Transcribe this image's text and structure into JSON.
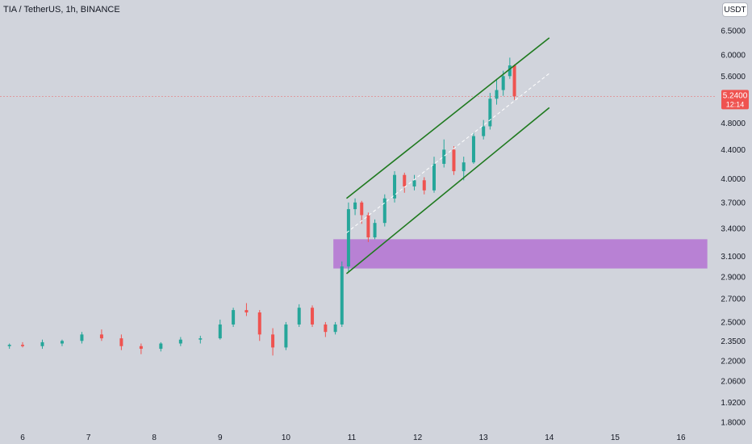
{
  "header": {
    "title": "TIA / TetherUS, 1h, BINANCE",
    "currency": "USDT"
  },
  "colors": {
    "background": "#d1d4dc",
    "up": "#26a69a",
    "down": "#ef5350",
    "channel": "#1f7a1f",
    "zone": "#b579d2",
    "midline": "#ffffff",
    "price_line": "#ef5350"
  },
  "chart_data": {
    "type": "candlestick",
    "title": "TIA / TetherUS, 1h, BINANCE",
    "x_ticks": [
      "6",
      "7",
      "8",
      "9",
      "10",
      "11",
      "12",
      "13",
      "14",
      "15",
      "16"
    ],
    "y_ticks": [
      "6.5000",
      "6.0000",
      "5.6000",
      "4.8000",
      "4.4000",
      "4.0000",
      "3.7000",
      "3.4000",
      "3.1000",
      "2.9000",
      "2.7000",
      "2.5000",
      "2.3500",
      "2.2000",
      "2.0600",
      "1.9200",
      "1.8000"
    ],
    "y_scale": "log",
    "y_range": [
      1.75,
      7.2
    ],
    "last_price": {
      "value": "5.2400",
      "countdown": "12:14"
    },
    "candles_approx": [
      [
        5.8,
        2.31,
        2.33,
        2.29,
        2.32
      ],
      [
        6.0,
        2.32,
        2.34,
        2.3,
        2.31
      ],
      [
        6.3,
        2.31,
        2.36,
        2.29,
        2.34
      ],
      [
        6.6,
        2.33,
        2.36,
        2.31,
        2.35
      ],
      [
        6.9,
        2.35,
        2.42,
        2.33,
        2.4
      ],
      [
        7.2,
        2.4,
        2.44,
        2.35,
        2.37
      ],
      [
        7.5,
        2.37,
        2.4,
        2.28,
        2.31
      ],
      [
        7.8,
        2.31,
        2.33,
        2.25,
        2.29
      ],
      [
        8.1,
        2.29,
        2.34,
        2.27,
        2.33
      ],
      [
        8.4,
        2.33,
        2.38,
        2.31,
        2.36
      ],
      [
        8.7,
        2.36,
        2.39,
        2.33,
        2.37
      ],
      [
        9.0,
        2.37,
        2.52,
        2.36,
        2.48
      ],
      [
        9.2,
        2.48,
        2.62,
        2.46,
        2.6
      ],
      [
        9.4,
        2.6,
        2.66,
        2.55,
        2.58
      ],
      [
        9.6,
        2.58,
        2.6,
        2.35,
        2.4
      ],
      [
        9.8,
        2.4,
        2.45,
        2.24,
        2.3
      ],
      [
        10.0,
        2.3,
        2.5,
        2.28,
        2.48
      ],
      [
        10.2,
        2.48,
        2.65,
        2.46,
        2.62
      ],
      [
        10.4,
        2.62,
        2.64,
        2.46,
        2.48
      ],
      [
        10.6,
        2.48,
        2.5,
        2.38,
        2.42
      ],
      [
        10.75,
        2.42,
        2.5,
        2.4,
        2.48
      ],
      [
        10.85,
        2.48,
        3.05,
        2.46,
        3.0
      ],
      [
        10.95,
        3.0,
        3.7,
        2.95,
        3.62
      ],
      [
        11.05,
        3.62,
        3.75,
        3.55,
        3.7
      ],
      [
        11.15,
        3.7,
        3.72,
        3.45,
        3.55
      ],
      [
        11.25,
        3.55,
        3.58,
        3.25,
        3.3
      ],
      [
        11.35,
        3.3,
        3.5,
        3.28,
        3.46
      ],
      [
        11.5,
        3.46,
        3.8,
        3.42,
        3.75
      ],
      [
        11.65,
        3.75,
        4.1,
        3.7,
        4.05
      ],
      [
        11.8,
        4.05,
        4.08,
        3.82,
        3.9
      ],
      [
        11.95,
        3.9,
        4.05,
        3.85,
        3.98
      ],
      [
        12.1,
        3.98,
        4.02,
        3.8,
        3.85
      ],
      [
        12.25,
        3.85,
        4.3,
        3.82,
        4.2
      ],
      [
        12.4,
        4.2,
        4.55,
        4.15,
        4.4
      ],
      [
        12.55,
        4.4,
        4.45,
        4.05,
        4.1
      ],
      [
        12.7,
        4.1,
        4.3,
        3.98,
        4.22
      ],
      [
        12.85,
        4.22,
        4.65,
        4.2,
        4.6
      ],
      [
        13.0,
        4.6,
        4.85,
        4.55,
        4.75
      ],
      [
        13.1,
        4.75,
        5.3,
        4.7,
        5.2
      ],
      [
        13.2,
        5.2,
        5.55,
        5.1,
        5.35
      ],
      [
        13.3,
        5.35,
        5.7,
        5.25,
        5.6
      ],
      [
        13.4,
        5.6,
        5.95,
        5.55,
        5.8
      ],
      [
        13.47,
        5.8,
        5.82,
        5.18,
        5.24
      ]
    ],
    "annotations": {
      "channel_upper": [
        [
          10.92,
          3.75
        ],
        [
          14.0,
          6.35
        ]
      ],
      "channel_lower": [
        [
          10.92,
          2.93
        ],
        [
          14.0,
          5.05
        ]
      ],
      "channel_mid": [
        [
          10.92,
          3.35
        ],
        [
          14.0,
          5.65
        ]
      ],
      "zone": {
        "x": [
          10.72,
          16.4
        ],
        "y": [
          2.98,
          3.28
        ]
      }
    }
  }
}
